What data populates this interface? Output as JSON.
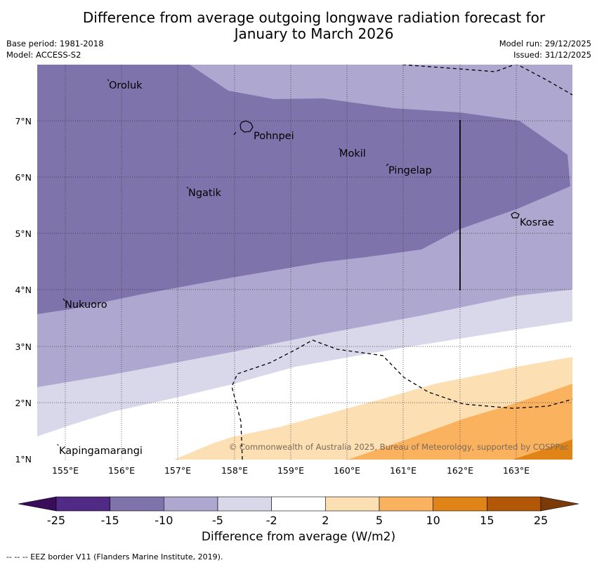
{
  "title": {
    "line1": "Difference from average outgoing longwave radiation forecast for",
    "line2": "January to March 2026"
  },
  "meta": {
    "base_period": "Base period: 1981-2018",
    "model": "Model: ACCESS-S2",
    "model_run": "Model run: 29/12/2025",
    "issued": "Issued: 31/12/2025"
  },
  "copyright": "© Commonwealth of Australia 2025, Bureau of Meteorology, supported by COSPPac",
  "axes": {
    "lon_labels": [
      "155°E",
      "156°E",
      "157°E",
      "158°E",
      "159°E",
      "160°E",
      "161°E",
      "162°E",
      "163°E"
    ],
    "lat_labels": [
      "7°N",
      "6°N",
      "5°N",
      "4°N",
      "3°N",
      "2°N",
      "1°N"
    ]
  },
  "places": [
    {
      "name": "Oroluk"
    },
    {
      "name": "Pohnpei"
    },
    {
      "name": "Mokil"
    },
    {
      "name": "Pingelap"
    },
    {
      "name": "Ngatik"
    },
    {
      "name": "Kosrae"
    },
    {
      "name": "Nukuoro"
    },
    {
      "name": "Kapingamarangi"
    }
  ],
  "colorbar": {
    "title": "Difference from average (W/m2)",
    "ticks": [
      "-25",
      "-15",
      "-10",
      "-5",
      "-2",
      "2",
      "5",
      "10",
      "15",
      "25"
    ],
    "colors": [
      "#3a0d5a",
      "#512a86",
      "#7f73ab",
      "#aea8d0",
      "#d9d8ea",
      "#ffffff",
      "#fddfb4",
      "#fbb25e",
      "#e18417",
      "#b25708",
      "#7a3b08"
    ]
  },
  "footnote": "--  --  -- EEZ border V11 (Flanders Marine Institute, 2019)."
}
